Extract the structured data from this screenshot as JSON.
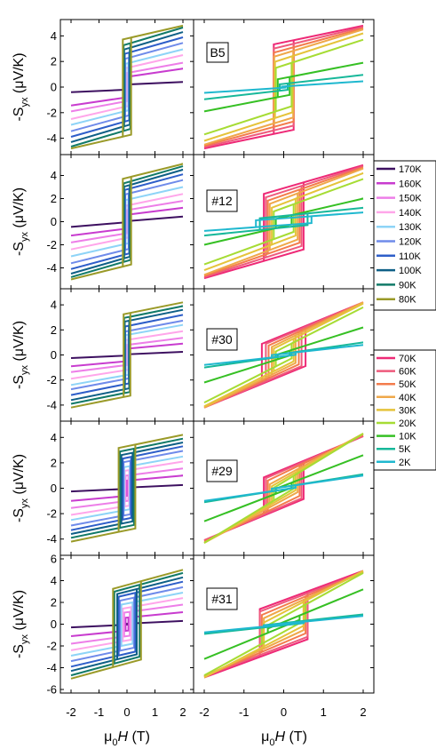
{
  "figure": {
    "xlabel": "μ₀H (T)",
    "ylabel": "-S_yx (μV/K)"
  },
  "legends": {
    "high_temp": [
      "170K",
      "160K",
      "150K",
      "140K",
      "130K",
      "120K",
      "110K",
      "100K",
      "90K",
      "80K"
    ],
    "low_temp": [
      "70K",
      "60K",
      "50K",
      "40K",
      "30K",
      "20K",
      "10K",
      "5K",
      "2K"
    ]
  },
  "colors": {
    "high_temp": [
      "#3d1060",
      "#c83ccf",
      "#ed7ee8",
      "#ffa6ea",
      "#8ed4f7",
      "#6f8bea",
      "#2e5ec9",
      "#0e5f86",
      "#117a68",
      "#9a9a28"
    ],
    "low_temp": [
      "#ee2a77",
      "#ee5a7c",
      "#f37c4c",
      "#efa84a",
      "#e5c33a",
      "#a6dc34",
      "#36c024",
      "#17b89a",
      "#1fb8cf"
    ]
  },
  "chart_data": [
    {
      "type": "line",
      "sample": "B5",
      "column": "left",
      "xlabel": "μ₀H (T)",
      "ylabel": "-S_yx (μV/K)",
      "xlim": [
        -2,
        2
      ],
      "ylim": [
        -5,
        5
      ],
      "yticks": [
        -4,
        -2,
        0,
        2,
        4
      ],
      "series": [
        {
          "name": "170K",
          "sat": 0.2,
          "slope": 0.1,
          "hc": 0.0
        },
        {
          "name": "160K",
          "sat": 0.8,
          "slope": 0.32,
          "hc": 0.02
        },
        {
          "name": "150K",
          "sat": 1.1,
          "slope": 0.4,
          "hc": 0.03
        },
        {
          "name": "140K",
          "sat": 1.5,
          "slope": 0.5,
          "hc": 0.04
        },
        {
          "name": "130K",
          "sat": 1.85,
          "slope": 0.55,
          "hc": 0.05
        },
        {
          "name": "120K",
          "sat": 2.25,
          "slope": 0.6,
          "hc": 0.07
        },
        {
          "name": "110K",
          "sat": 2.65,
          "slope": 0.62,
          "hc": 0.08
        },
        {
          "name": "100K",
          "sat": 3.0,
          "slope": 0.65,
          "hc": 0.1
        },
        {
          "name": "90K",
          "sat": 3.35,
          "slope": 0.65,
          "hc": 0.12
        },
        {
          "name": "80K",
          "sat": 3.8,
          "slope": 0.5,
          "hc": 0.15
        }
      ]
    },
    {
      "type": "line",
      "sample": "B5",
      "column": "right",
      "xlabel": "μ₀H (T)",
      "ylim": [
        -5,
        5
      ],
      "xlim": [
        -2,
        2
      ],
      "series": [
        {
          "name": "70K",
          "sat": 3.5,
          "slope": 0.65,
          "hc": 0.25
        },
        {
          "name": "60K",
          "sat": 3.2,
          "slope": 0.75,
          "hc": 0.25
        },
        {
          "name": "50K",
          "sat": 2.9,
          "slope": 0.85,
          "hc": 0.25
        },
        {
          "name": "40K",
          "sat": 2.6,
          "slope": 0.95,
          "hc": 0.24
        },
        {
          "name": "30K",
          "sat": 2.2,
          "slope": 1.0,
          "hc": 0.22
        },
        {
          "name": "20K",
          "sat": 1.7,
          "slope": 1.0,
          "hc": 0.2
        },
        {
          "name": "10K",
          "sat": 0.7,
          "slope": 0.6,
          "hc": 0.15
        },
        {
          "name": "5K",
          "sat": 0.25,
          "slope": 0.35,
          "hc": 0.1
        },
        {
          "name": "2K",
          "sat": 0.05,
          "slope": 0.2,
          "hc": 0.05
        }
      ]
    },
    {
      "type": "line",
      "sample": "#12",
      "column": "left",
      "xlabel": "μ₀H (T)",
      "ylabel": "-S_yx (μV/K)",
      "xlim": [
        -2,
        2
      ],
      "ylim": [
        -5.5,
        5.5
      ],
      "yticks": [
        -4,
        -2,
        0,
        2,
        4
      ],
      "series": [
        {
          "name": "170K",
          "sat": 0.05,
          "slope": 0.2,
          "hc": 0.0
        },
        {
          "name": "160K",
          "sat": 0.6,
          "slope": 0.3,
          "hc": 0.02
        },
        {
          "name": "150K",
          "sat": 1.0,
          "slope": 0.4,
          "hc": 0.03
        },
        {
          "name": "140K",
          "sat": 1.4,
          "slope": 0.5,
          "hc": 0.04
        },
        {
          "name": "130K",
          "sat": 1.9,
          "slope": 0.55,
          "hc": 0.05
        },
        {
          "name": "120K",
          "sat": 2.4,
          "slope": 0.6,
          "hc": 0.06
        },
        {
          "name": "110K",
          "sat": 2.8,
          "slope": 0.65,
          "hc": 0.08
        },
        {
          "name": "100K",
          "sat": 3.1,
          "slope": 0.7,
          "hc": 0.1
        },
        {
          "name": "90K",
          "sat": 3.4,
          "slope": 0.7,
          "hc": 0.12
        },
        {
          "name": "80K",
          "sat": 3.8,
          "slope": 0.6,
          "hc": 0.15
        }
      ]
    },
    {
      "type": "line",
      "sample": "#12",
      "column": "right",
      "xlabel": "μ₀H (T)",
      "xlim": [
        -2,
        2
      ],
      "ylim": [
        -5.5,
        5.5
      ],
      "series": [
        {
          "name": "70K",
          "sat": 2.9,
          "slope": 1.0,
          "hc": 0.5
        },
        {
          "name": "60K",
          "sat": 2.6,
          "slope": 1.1,
          "hc": 0.45
        },
        {
          "name": "50K",
          "sat": 2.3,
          "slope": 1.2,
          "hc": 0.4
        },
        {
          "name": "40K",
          "sat": 2.0,
          "slope": 1.3,
          "hc": 0.35
        },
        {
          "name": "30K",
          "sat": 1.6,
          "slope": 1.3,
          "hc": 0.3
        },
        {
          "name": "20K",
          "sat": 1.2,
          "slope": 1.25,
          "hc": 0.25
        },
        {
          "name": "10K",
          "sat": 0.4,
          "slope": 0.8,
          "hc": 0.2
        },
        {
          "name": "5K",
          "sat": 0.5,
          "slope": 0.35,
          "hc": 0.6
        },
        {
          "name": "2K",
          "sat": 0.3,
          "slope": 0.25,
          "hc": 0.7
        }
      ]
    },
    {
      "type": "line",
      "sample": "#30",
      "column": "left",
      "xlabel": "μ₀H (T)",
      "ylabel": "-S_yx (μV/K)",
      "xlim": [
        -2,
        2
      ],
      "ylim": [
        -5,
        5
      ],
      "yticks": [
        -4,
        -2,
        0,
        2,
        4
      ],
      "series": [
        {
          "name": "170K",
          "sat": 0.05,
          "slope": 0.1,
          "hc": 0.0
        },
        {
          "name": "160K",
          "sat": 0.5,
          "slope": 0.2,
          "hc": 0.02
        },
        {
          "name": "150K",
          "sat": 0.8,
          "slope": 0.28,
          "hc": 0.03
        },
        {
          "name": "140K",
          "sat": 1.2,
          "slope": 0.35,
          "hc": 0.04
        },
        {
          "name": "130K",
          "sat": 1.6,
          "slope": 0.4,
          "hc": 0.05
        },
        {
          "name": "120K",
          "sat": 1.9,
          "slope": 0.42,
          "hc": 0.06
        },
        {
          "name": "110K",
          "sat": 2.3,
          "slope": 0.45,
          "hc": 0.07
        },
        {
          "name": "100K",
          "sat": 2.7,
          "slope": 0.45,
          "hc": 0.08
        },
        {
          "name": "90K",
          "sat": 3.0,
          "slope": 0.45,
          "hc": 0.1
        },
        {
          "name": "80K",
          "sat": 3.3,
          "slope": 0.45,
          "hc": 0.12
        }
      ]
    },
    {
      "type": "line",
      "sample": "#30",
      "column": "right",
      "xlabel": "μ₀H (T)",
      "xlim": [
        -2,
        2
      ],
      "ylim": [
        -5,
        5
      ],
      "series": [
        {
          "name": "70K",
          "sat": 1.6,
          "slope": 1.3,
          "hc": 0.55
        },
        {
          "name": "60K",
          "sat": 1.5,
          "slope": 1.35,
          "hc": 0.45
        },
        {
          "name": "50K",
          "sat": 1.3,
          "slope": 1.45,
          "hc": 0.38
        },
        {
          "name": "40K",
          "sat": 1.1,
          "slope": 1.55,
          "hc": 0.3
        },
        {
          "name": "30K",
          "sat": 0.9,
          "slope": 1.6,
          "hc": 0.25
        },
        {
          "name": "20K",
          "sat": 0.6,
          "slope": 1.6,
          "hc": 0.2
        },
        {
          "name": "10K",
          "sat": 0.2,
          "slope": 1.0,
          "hc": 0.15
        },
        {
          "name": "5K",
          "sat": 0.1,
          "slope": 0.45,
          "hc": 0.2
        },
        {
          "name": "2K",
          "sat": 0.1,
          "slope": 0.35,
          "hc": 0.3
        }
      ]
    },
    {
      "type": "line",
      "sample": "#29",
      "column": "left",
      "xlabel": "μ₀H (T)",
      "ylabel": "-S_yx (μV/K)",
      "xlim": [
        -2,
        2
      ],
      "ylim": [
        -5,
        5
      ],
      "yticks": [
        -4,
        -2,
        0,
        2,
        4
      ],
      "series": [
        {
          "name": "170K",
          "sat": 0.05,
          "slope": 0.1,
          "hc": 0.0
        },
        {
          "name": "160K",
          "sat": 0.6,
          "slope": 0.2,
          "hc": 0.03
        },
        {
          "name": "150K",
          "sat": 1.0,
          "slope": 0.28,
          "hc": 0.05
        },
        {
          "name": "140K",
          "sat": 1.4,
          "slope": 0.35,
          "hc": 0.08
        },
        {
          "name": "130K",
          "sat": 1.7,
          "slope": 0.4,
          "hc": 0.1
        },
        {
          "name": "120K",
          "sat": 2.1,
          "slope": 0.42,
          "hc": 0.12
        },
        {
          "name": "110K",
          "sat": 2.4,
          "slope": 0.45,
          "hc": 0.15
        },
        {
          "name": "100K",
          "sat": 2.7,
          "slope": 0.45,
          "hc": 0.2
        },
        {
          "name": "90K",
          "sat": 3.0,
          "slope": 0.45,
          "hc": 0.25
        },
        {
          "name": "80K",
          "sat": 3.3,
          "slope": 0.45,
          "hc": 0.3
        }
      ]
    },
    {
      "type": "line",
      "sample": "#29",
      "column": "right",
      "xlabel": "μ₀H (T)",
      "xlim": [
        -2,
        2
      ],
      "ylim": [
        -5,
        5
      ],
      "series": [
        {
          "name": "70K",
          "sat": 1.5,
          "slope": 1.3,
          "hc": 0.5
        },
        {
          "name": "60K",
          "sat": 1.4,
          "slope": 1.35,
          "hc": 0.45
        },
        {
          "name": "50K",
          "sat": 1.2,
          "slope": 1.5,
          "hc": 0.4
        },
        {
          "name": "40K",
          "sat": 0.9,
          "slope": 1.7,
          "hc": 0.35
        },
        {
          "name": "30K",
          "sat": 0.7,
          "slope": 1.8,
          "hc": 0.3
        },
        {
          "name": "20K",
          "sat": 0.5,
          "slope": 1.9,
          "hc": 0.25
        },
        {
          "name": "10K",
          "sat": 0.2,
          "slope": 1.2,
          "hc": 0.2
        },
        {
          "name": "5K",
          "sat": 0.1,
          "slope": 0.5,
          "hc": 0.2
        },
        {
          "name": "2K",
          "sat": 0.1,
          "slope": 0.45,
          "hc": 0.3
        }
      ]
    },
    {
      "type": "line",
      "sample": "#31",
      "column": "left",
      "xlabel": "μ₀H (T)",
      "ylabel": "-S_yx (μV/K)",
      "xlim": [
        -2,
        2
      ],
      "ylim": [
        -6,
        6
      ],
      "yticks": [
        -6,
        -4,
        -2,
        0,
        2,
        4,
        6
      ],
      "series": [
        {
          "name": "170K",
          "sat": 0.05,
          "slope": 0.12,
          "hc": 0.0
        },
        {
          "name": "160K",
          "sat": 0.6,
          "slope": 0.25,
          "hc": 0.05
        },
        {
          "name": "150K",
          "sat": 1.1,
          "slope": 0.35,
          "hc": 0.1
        },
        {
          "name": "140K",
          "sat": 1.5,
          "slope": 0.45,
          "hc": 0.15
        },
        {
          "name": "130K",
          "sat": 1.9,
          "slope": 0.5,
          "hc": 0.2
        },
        {
          "name": "120K",
          "sat": 2.3,
          "slope": 0.55,
          "hc": 0.25
        },
        {
          "name": "110K",
          "sat": 2.7,
          "slope": 0.6,
          "hc": 0.3
        },
        {
          "name": "100K",
          "sat": 3.0,
          "slope": 0.65,
          "hc": 0.35
        },
        {
          "name": "90K",
          "sat": 3.3,
          "slope": 0.7,
          "hc": 0.45
        },
        {
          "name": "80K",
          "sat": 3.6,
          "slope": 0.7,
          "hc": 0.5
        }
      ]
    },
    {
      "type": "line",
      "sample": "#31",
      "column": "right",
      "xlabel": "μ₀H (T)",
      "xlim": [
        -2,
        2
      ],
      "ylim": [
        -6,
        6
      ],
      "series": [
        {
          "name": "70K",
          "sat": 2.2,
          "slope": 1.35,
          "hc": 0.6
        },
        {
          "name": "60K",
          "sat": 2.0,
          "slope": 1.4,
          "hc": 0.6
        },
        {
          "name": "50K",
          "sat": 1.7,
          "slope": 1.55,
          "hc": 0.55
        },
        {
          "name": "40K",
          "sat": 1.4,
          "slope": 1.7,
          "hc": 0.5
        },
        {
          "name": "30K",
          "sat": 1.1,
          "slope": 1.9,
          "hc": 0.5
        },
        {
          "name": "20K",
          "sat": 0.7,
          "slope": 2.0,
          "hc": 0.55
        },
        {
          "name": "10K",
          "sat": 0.2,
          "slope": 1.5,
          "hc": 0.4
        },
        {
          "name": "5K",
          "sat": 0.1,
          "slope": 0.4,
          "hc": 0.5
        },
        {
          "name": "2K",
          "sat": 0.05,
          "slope": 0.35,
          "hc": 0.5
        }
      ]
    }
  ]
}
